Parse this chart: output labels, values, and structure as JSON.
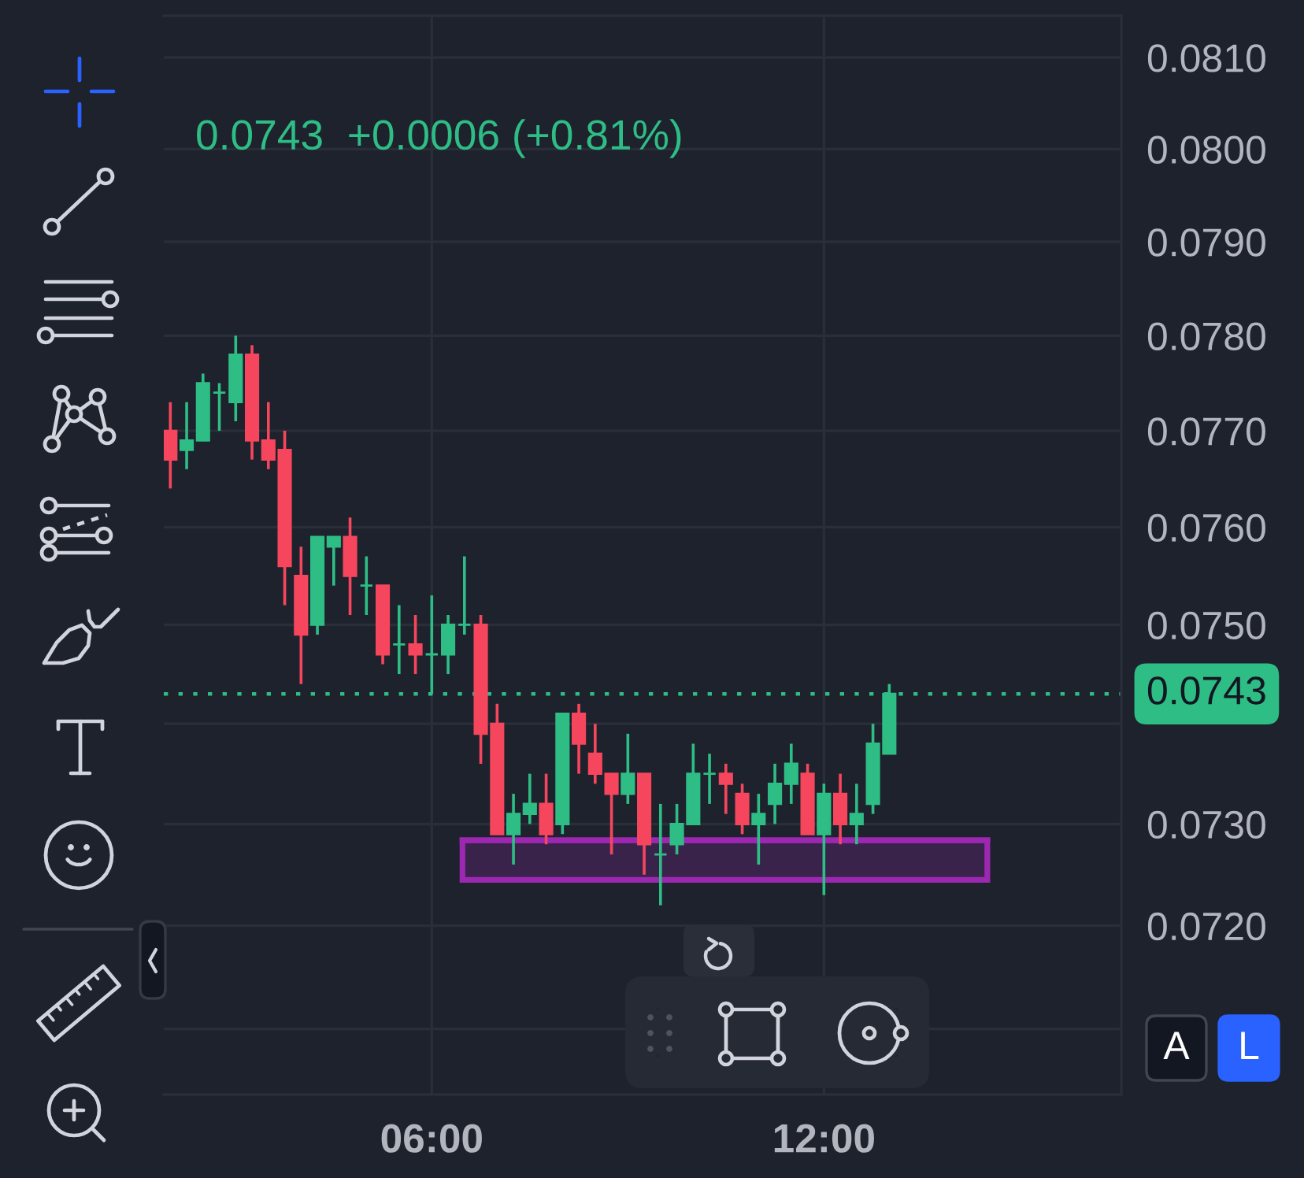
{
  "chart_data": {
    "type": "candlestick",
    "subtitle": "0.0743  +0.0006 (+0.81%)",
    "x": [
      2,
      2.25,
      2.5,
      2.75,
      3,
      3.25,
      3.5,
      3.75,
      4,
      4.25,
      4.5,
      4.75,
      5,
      5.25,
      5.5,
      5.75,
      6,
      6.25,
      6.5,
      6.75,
      7,
      7.25,
      7.5,
      7.75,
      8,
      8.25,
      8.5,
      8.75,
      9,
      9.25,
      9.5,
      9.75,
      10,
      10.25,
      10.5,
      10.75,
      11,
      11.25,
      11.5,
      11.75,
      12,
      12.25,
      12.5,
      12.75,
      13
    ],
    "ohlc": [
      [
        0.077,
        0.0773,
        0.0764,
        0.0767
      ],
      [
        0.0768,
        0.0773,
        0.0766,
        0.0769
      ],
      [
        0.0769,
        0.0776,
        0.0769,
        0.0775
      ],
      [
        0.0774,
        0.0775,
        0.077,
        0.0774
      ],
      [
        0.0773,
        0.078,
        0.0771,
        0.0778
      ],
      [
        0.0778,
        0.0779,
        0.0767,
        0.0769
      ],
      [
        0.0769,
        0.0773,
        0.0766,
        0.0767
      ],
      [
        0.0768,
        0.077,
        0.0752,
        0.0756
      ],
      [
        0.0755,
        0.0758,
        0.0744,
        0.0749
      ],
      [
        0.075,
        0.0759,
        0.0749,
        0.0759
      ],
      [
        0.0758,
        0.0759,
        0.0754,
        0.0759
      ],
      [
        0.0759,
        0.0761,
        0.0751,
        0.0755
      ],
      [
        0.0754,
        0.0757,
        0.0751,
        0.0754
      ],
      [
        0.0754,
        0.0754,
        0.0746,
        0.0747
      ],
      [
        0.0748,
        0.0752,
        0.0745,
        0.0748
      ],
      [
        0.0748,
        0.0751,
        0.0745,
        0.0747
      ],
      [
        0.0747,
        0.0753,
        0.0743,
        0.0747
      ],
      [
        0.0747,
        0.0751,
        0.0745,
        0.075
      ],
      [
        0.075,
        0.0757,
        0.0749,
        0.075
      ],
      [
        0.075,
        0.0751,
        0.0736,
        0.0739
      ],
      [
        0.074,
        0.0742,
        0.0729,
        0.0729
      ],
      [
        0.0729,
        0.0733,
        0.0726,
        0.0731
      ],
      [
        0.0731,
        0.0735,
        0.073,
        0.0732
      ],
      [
        0.0732,
        0.0735,
        0.0728,
        0.0729
      ],
      [
        0.073,
        0.0741,
        0.0729,
        0.0741
      ],
      [
        0.0741,
        0.0742,
        0.0735,
        0.0738
      ],
      [
        0.0737,
        0.074,
        0.0734,
        0.0735
      ],
      [
        0.0735,
        0.0735,
        0.0727,
        0.0733
      ],
      [
        0.0733,
        0.0739,
        0.0732,
        0.0735
      ],
      [
        0.0735,
        0.0735,
        0.0725,
        0.0728
      ],
      [
        0.0727,
        0.0732,
        0.0722,
        0.0727
      ],
      [
        0.0728,
        0.0732,
        0.0727,
        0.073
      ],
      [
        0.073,
        0.0738,
        0.073,
        0.0735
      ],
      [
        0.0735,
        0.0737,
        0.0732,
        0.0735
      ],
      [
        0.0735,
        0.0736,
        0.0731,
        0.0734
      ],
      [
        0.0733,
        0.0734,
        0.0729,
        0.073
      ],
      [
        0.073,
        0.0733,
        0.0726,
        0.0731
      ],
      [
        0.0732,
        0.0736,
        0.073,
        0.0734
      ],
      [
        0.0734,
        0.0738,
        0.0732,
        0.0736
      ],
      [
        0.0735,
        0.0736,
        0.0729,
        0.0729
      ],
      [
        0.0729,
        0.0734,
        0.0723,
        0.0733
      ],
      [
        0.0733,
        0.0735,
        0.0728,
        0.073
      ],
      [
        0.073,
        0.0734,
        0.0728,
        0.0731
      ],
      [
        0.0732,
        0.074,
        0.0731,
        0.0738
      ],
      [
        0.0737,
        0.0744,
        0.0737,
        0.0743
      ]
    ],
    "colors": [
      "#f6465d",
      "#2ebd85",
      "#2ebd85",
      "#2ebd85",
      "#2ebd85",
      "#f6465d",
      "#f6465d",
      "#f6465d",
      "#f6465d",
      "#2ebd85",
      "#2ebd85",
      "#f6465d",
      "#2ebd85",
      "#f6465d",
      "#2ebd85",
      "#f6465d",
      "#2ebd85",
      "#2ebd85",
      "#2ebd85",
      "#f6465d",
      "#f6465d",
      "#2ebd85",
      "#2ebd85",
      "#f6465d",
      "#2ebd85",
      "#f6465d",
      "#f6465d",
      "#f6465d",
      "#2ebd85",
      "#f6465d",
      "#2ebd85",
      "#2ebd85",
      "#2ebd85",
      "#2ebd85",
      "#f6465d",
      "#f6465d",
      "#2ebd85",
      "#2ebd85",
      "#2ebd85",
      "#f6465d",
      "#2ebd85",
      "#f6465d",
      "#2ebd85",
      "#2ebd85",
      "#2ebd85"
    ],
    "series": [
      {
        "type": "line",
        "x": [
          6.47,
          14.5
        ],
        "values": [
          0.07284,
          0.07284
        ],
        "lower": [
          0.07245,
          0.07245
        ],
        "upper": [
          0.07284,
          0.07284
        ],
        "color": "#9c27b0"
      }
    ],
    "xlim": [
      1.9,
      16.55
    ],
    "xticks": [
      {
        "value": 6,
        "label": "06:00"
      },
      {
        "value": 12,
        "label": "12:00"
      }
    ],
    "ylim": [
      0.07037,
      0.08146
    ],
    "yticks": [
      {
        "value": 0.071,
        "label": null
      },
      {
        "value": 0.072,
        "label": "0.0720"
      },
      {
        "value": 0.073,
        "label": "0.0730"
      },
      {
        "value": 0.074,
        "label": null
      },
      {
        "value": 0.075,
        "label": "0.0750"
      },
      {
        "value": 0.076,
        "label": "0.0760"
      },
      {
        "value": 0.077,
        "label": "0.0770"
      },
      {
        "value": 0.078,
        "label": "0.0780"
      },
      {
        "value": 0.079,
        "label": "0.0790"
      },
      {
        "value": 0.08,
        "label": "0.0800"
      },
      {
        "value": 0.081,
        "label": "0.0810"
      }
    ],
    "log": true,
    "grid": true,
    "ref_lines": [
      {
        "axis": "y",
        "value": 0.0743,
        "label": "0.0743",
        "color": "#2ebd85",
        "line_style": "dotted"
      }
    ],
    "annotations": [
      "A",
      "L"
    ]
  }
}
